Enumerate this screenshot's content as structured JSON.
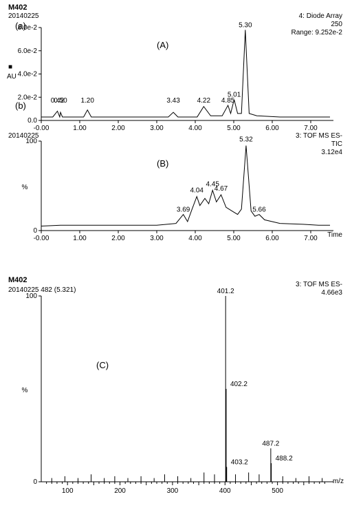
{
  "global": {
    "sample_id": "M402",
    "run_date": "20140225",
    "background_color": "#ffffff",
    "axis_color": "#000000",
    "trace_color": "#000000",
    "font_family": "Arial",
    "title_fontsize": 11,
    "label_fontsize": 10,
    "peak_label_fontsize": 10
  },
  "panel_a": {
    "letter_outer": "(a)",
    "letter_inner": "(A)",
    "detector_line1": "4: Diode Array",
    "detector_line2": "250",
    "detector_line3": "Range: 9.252e-2",
    "y_axis_label": "AU",
    "y_axis_marker": "■",
    "type": "line",
    "xlim": [
      -0.0,
      7.5
    ],
    "xtick_step": 1.0,
    "xticklabels": [
      "-0.00",
      "1.00",
      "2.00",
      "3.00",
      "4.00",
      "5.00",
      "6.00",
      "7.00"
    ],
    "ylim": [
      0,
      0.08
    ],
    "yticklabels": [
      "0.0",
      "2.0e-2",
      "4.0e-2",
      "6.0e-2",
      "8.0e-2"
    ],
    "trace": [
      [
        0.0,
        0.3
      ],
      [
        0.3,
        0.3
      ],
      [
        0.42,
        0.8
      ],
      [
        0.48,
        0.3
      ],
      [
        0.5,
        0.7
      ],
      [
        0.55,
        0.3
      ],
      [
        1.1,
        0.3
      ],
      [
        1.2,
        0.9
      ],
      [
        1.3,
        0.3
      ],
      [
        2.0,
        0.3
      ],
      [
        3.3,
        0.3
      ],
      [
        3.43,
        0.7
      ],
      [
        3.55,
        0.3
      ],
      [
        4.05,
        0.3
      ],
      [
        4.22,
        1.2
      ],
      [
        4.4,
        0.4
      ],
      [
        4.55,
        0.4
      ],
      [
        4.7,
        0.4
      ],
      [
        4.85,
        1.3
      ],
      [
        4.92,
        0.6
      ],
      [
        5.01,
        1.8
      ],
      [
        5.1,
        0.6
      ],
      [
        5.2,
        0.6
      ],
      [
        5.3,
        7.8
      ],
      [
        5.4,
        0.6
      ],
      [
        5.6,
        0.4
      ],
      [
        6.2,
        0.3
      ],
      [
        7.0,
        0.3
      ],
      [
        7.5,
        0.3
      ]
    ],
    "peaks": [
      {
        "x": 0.42,
        "label": "0.42"
      },
      {
        "x": 0.5,
        "label": "0.50"
      },
      {
        "x": 1.2,
        "label": "1.20"
      },
      {
        "x": 3.43,
        "label": "3.43"
      },
      {
        "x": 4.22,
        "label": "4.22"
      },
      {
        "x": 4.85,
        "label": "4.85"
      },
      {
        "x": 5.01,
        "label": "5.01"
      },
      {
        "x": 5.3,
        "label": "5.30"
      }
    ]
  },
  "panel_b": {
    "letter_outer": "(b)",
    "letter_inner": "(B)",
    "run_date": "20140225",
    "detector_line1": "3: TOF MS ES-",
    "detector_line2": "TIC",
    "detector_line3": "3.12e4",
    "x_axis_label": "Time",
    "y_axis_label": "%",
    "type": "line",
    "xlim": [
      -0.0,
      7.5
    ],
    "xtick_step": 1.0,
    "xticklabels": [
      "-0.00",
      "1.00",
      "2.00",
      "3.00",
      "4.00",
      "5.00",
      "6.00",
      "7.00"
    ],
    "ylim": [
      0,
      100
    ],
    "yticklabels": [
      "0",
      "100"
    ],
    "trace": [
      [
        0.0,
        5
      ],
      [
        0.5,
        6
      ],
      [
        1.0,
        6
      ],
      [
        1.5,
        6
      ],
      [
        2.0,
        6
      ],
      [
        2.5,
        6
      ],
      [
        3.0,
        6
      ],
      [
        3.5,
        8
      ],
      [
        3.69,
        18
      ],
      [
        3.8,
        10
      ],
      [
        3.9,
        22
      ],
      [
        4.04,
        38
      ],
      [
        4.12,
        28
      ],
      [
        4.25,
        36
      ],
      [
        4.35,
        30
      ],
      [
        4.45,
        45
      ],
      [
        4.55,
        32
      ],
      [
        4.67,
        40
      ],
      [
        4.8,
        26
      ],
      [
        4.95,
        22
      ],
      [
        5.1,
        18
      ],
      [
        5.2,
        24
      ],
      [
        5.32,
        95
      ],
      [
        5.45,
        22
      ],
      [
        5.55,
        16
      ],
      [
        5.66,
        18
      ],
      [
        5.8,
        12
      ],
      [
        6.2,
        8
      ],
      [
        6.8,
        7
      ],
      [
        7.2,
        6
      ],
      [
        7.5,
        6
      ]
    ],
    "peaks": [
      {
        "x": 3.69,
        "label": "3.69"
      },
      {
        "x": 4.04,
        "label": "4.04"
      },
      {
        "x": 4.45,
        "label": "4.45"
      },
      {
        "x": 4.67,
        "label": "4.67"
      },
      {
        "x": 5.32,
        "label": "5.32"
      },
      {
        "x": 5.66,
        "label": "5.66"
      }
    ]
  },
  "panel_c": {
    "letter_inner": "(C)",
    "sample_id": "M402",
    "scan_label": "20140225 482 (5.321)",
    "detector_line1": "3: TOF MS ES-",
    "detector_line2": "4.66e3",
    "x_axis_label": "m/z",
    "y_axis_label": "%",
    "type": "mass-spectrum",
    "xlim": [
      50,
      600
    ],
    "xtick_step": 50,
    "xticks": [
      100,
      200,
      300,
      400,
      500
    ],
    "ylim": [
      0,
      100
    ],
    "yticklabels": [
      "0",
      "100"
    ],
    "main_peaks": [
      {
        "mz": 401.2,
        "rel": 100,
        "label": "401.2"
      },
      {
        "mz": 402.2,
        "rel": 50,
        "label": "402.2"
      },
      {
        "mz": 403.2,
        "rel": 8,
        "label": "403.2"
      },
      {
        "mz": 487.2,
        "rel": 18,
        "label": "487.2"
      },
      {
        "mz": 488.2,
        "rel": 10,
        "label": "488.2"
      }
    ],
    "noise_peaks": [
      {
        "mz": 70,
        "rel": 2
      },
      {
        "mz": 95,
        "rel": 3
      },
      {
        "mz": 120,
        "rel": 2
      },
      {
        "mz": 145,
        "rel": 4
      },
      {
        "mz": 170,
        "rel": 2
      },
      {
        "mz": 190,
        "rel": 3
      },
      {
        "mz": 215,
        "rel": 2
      },
      {
        "mz": 240,
        "rel": 3
      },
      {
        "mz": 265,
        "rel": 2
      },
      {
        "mz": 285,
        "rel": 4
      },
      {
        "mz": 310,
        "rel": 3
      },
      {
        "mz": 335,
        "rel": 2
      },
      {
        "mz": 360,
        "rel": 5
      },
      {
        "mz": 380,
        "rel": 4
      },
      {
        "mz": 420,
        "rel": 4
      },
      {
        "mz": 445,
        "rel": 5
      },
      {
        "mz": 465,
        "rel": 4
      },
      {
        "mz": 510,
        "rel": 3
      },
      {
        "mz": 535,
        "rel": 2
      },
      {
        "mz": 560,
        "rel": 3
      },
      {
        "mz": 585,
        "rel": 2
      }
    ]
  }
}
